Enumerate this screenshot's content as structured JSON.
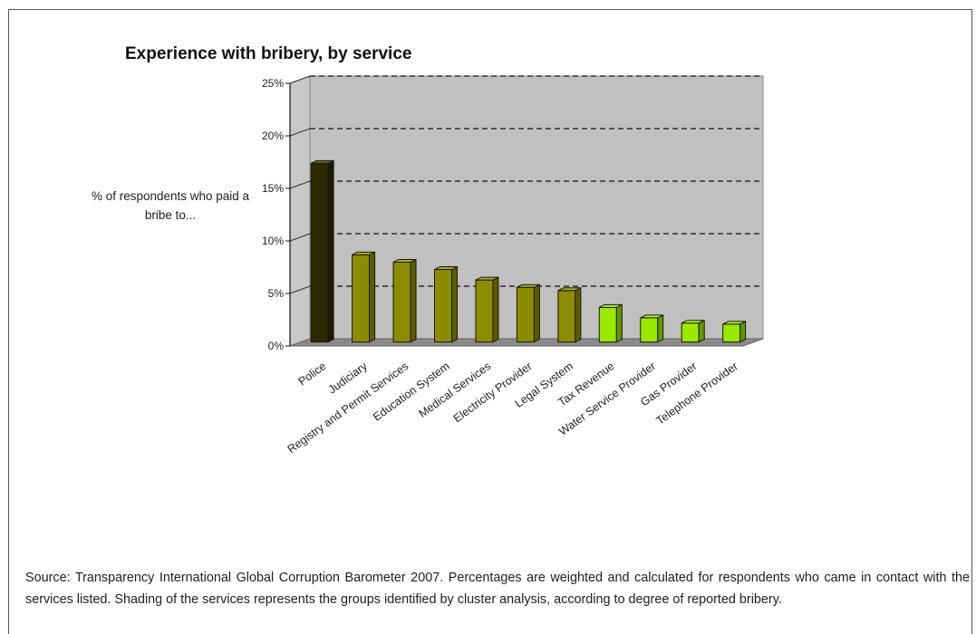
{
  "chart_data": {
    "type": "bar",
    "title": "Experience with bribery, by service",
    "ylabel": "% of respondents who paid a bribe to...",
    "xlabel": "",
    "categories": [
      "Police",
      "Judiciary",
      "Registry and Permit Services",
      "Education System",
      "Medical Services",
      "Electricity Provider",
      "Legal System",
      "Tax Revenue",
      "Water Service Provider",
      "Gas Provider",
      "Telephone Provider"
    ],
    "values": [
      17.0,
      8.3,
      7.6,
      6.9,
      5.9,
      5.2,
      4.9,
      3.3,
      2.3,
      1.8,
      1.7
    ],
    "groups": [
      "high",
      "medium",
      "medium",
      "medium",
      "medium",
      "medium",
      "medium",
      "low",
      "low",
      "low",
      "low"
    ],
    "group_colors": {
      "high": "#2b2a00",
      "medium": "#8c8c00",
      "low": "#99ea00"
    },
    "yticks": [
      "0%",
      "5%",
      "10%",
      "15%",
      "20%",
      "25%"
    ],
    "ylim": [
      0,
      25
    ],
    "grid": true,
    "plot_background": "#c0c0c0",
    "legend": "none"
  },
  "source_note": "Source: Transparency International Global Corruption Barometer 2007. Percentages are weighted and calculated for respondents who came in contact with the services listed. Shading of the services represents the groups identified by cluster analysis, according to degree of reported bribery."
}
